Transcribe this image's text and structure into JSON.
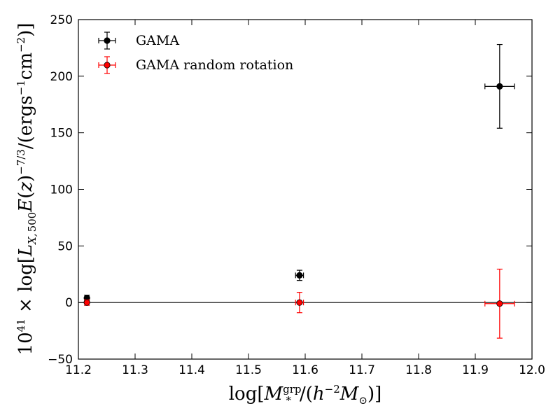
{
  "chart_data": {
    "type": "scatter",
    "xlim": [
      11.2,
      12.0
    ],
    "ylim": [
      -50,
      250
    ],
    "x_ticks": [
      "11.2",
      "11.3",
      "11.4",
      "11.5",
      "11.6",
      "11.7",
      "11.8",
      "11.9",
      "12.0"
    ],
    "y_ticks": [
      "−50",
      "0",
      "50",
      "100",
      "150",
      "200",
      "250"
    ],
    "x_tick_values": [
      11.2,
      11.3,
      11.4,
      11.5,
      11.6,
      11.7,
      11.8,
      11.9,
      12.0
    ],
    "y_tick_values": [
      -50,
      0,
      50,
      100,
      150,
      200,
      250
    ],
    "xlabel": "log[M*grp/(h−2M⊙)]",
    "ylabel": "1041 × log[LX,500E(z)−7/3/(ergs−1cm−2)]",
    "reference_line_y": 0,
    "legend": {
      "position": "top-left"
    },
    "series": [
      {
        "name": "GAMA",
        "color": "#000000",
        "points": [
          {
            "x": 11.215,
            "y": 4,
            "xerr": 0.003,
            "yerr": 2.5
          },
          {
            "x": 11.59,
            "y": 24,
            "xerr": 0.007,
            "yerr": 4.5
          },
          {
            "x": 11.943,
            "y": 191,
            "xerr": 0.026,
            "yerr": 37
          }
        ]
      },
      {
        "name": "GAMA random rotation",
        "color": "#ff0000",
        "points": [
          {
            "x": 11.215,
            "y": 0,
            "xerr": 0.003,
            "yerr": 2.5
          },
          {
            "x": 11.59,
            "y": 0,
            "xerr": 0.007,
            "yerr": 9
          },
          {
            "x": 11.943,
            "y": -1,
            "xerr": 0.026,
            "yerr": 30.5
          }
        ]
      }
    ]
  }
}
